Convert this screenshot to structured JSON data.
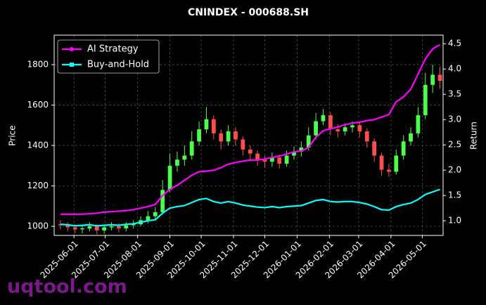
{
  "chart_data": {
    "type": "candlestick",
    "title": "CNINDEX - 000688.SH",
    "y_label": "Price",
    "y2_label": "Return",
    "watermark": "uqtool.com",
    "x": [
      "2025-05-19",
      "2025-05-26",
      "2025-06-02",
      "2025-06-09",
      "2025-06-16",
      "2025-06-23",
      "2025-06-30",
      "2025-07-07",
      "2025-07-14",
      "2025-07-21",
      "2025-07-28",
      "2025-08-04",
      "2025-08-11",
      "2025-08-18",
      "2025-08-25",
      "2025-09-01",
      "2025-09-08",
      "2025-09-15",
      "2025-09-22",
      "2025-09-29",
      "2025-10-06",
      "2025-10-13",
      "2025-10-20",
      "2025-10-27",
      "2025-11-03",
      "2025-11-10",
      "2025-11-17",
      "2025-11-24",
      "2025-12-01",
      "2025-12-08",
      "2025-12-15",
      "2025-12-22",
      "2025-12-29",
      "2026-01-05",
      "2026-01-12",
      "2026-01-19",
      "2026-01-26",
      "2026-02-02",
      "2026-02-09",
      "2026-02-16",
      "2026-02-23",
      "2026-03-02",
      "2026-03-09",
      "2026-03-16",
      "2026-03-23",
      "2026-03-30",
      "2026-04-06",
      "2026-04-13",
      "2026-04-20",
      "2026-04-27",
      "2026-05-04",
      "2026-05-11",
      "2026-05-18"
    ],
    "open": [
      1010,
      1005,
      995,
      985,
      990,
      1000,
      980,
      995,
      1000,
      990,
      1005,
      1010,
      1030,
      1050,
      1070,
      1180,
      1300,
      1330,
      1350,
      1420,
      1480,
      1530,
      1460,
      1420,
      1470,
      1430,
      1380,
      1360,
      1330,
      1320,
      1340,
      1310,
      1350,
      1370,
      1390,
      1450,
      1520,
      1550,
      1480,
      1470,
      1490,
      1500,
      1470,
      1420,
      1350,
      1280,
      1270,
      1350,
      1420,
      1460,
      1550,
      1700,
      1750
    ],
    "high": [
      1030,
      1020,
      1010,
      1005,
      1020,
      1010,
      1010,
      1020,
      1015,
      1020,
      1030,
      1050,
      1075,
      1095,
      1230,
      1360,
      1370,
      1400,
      1470,
      1520,
      1590,
      1550,
      1480,
      1500,
      1490,
      1445,
      1400,
      1375,
      1350,
      1365,
      1355,
      1375,
      1395,
      1420,
      1490,
      1560,
      1580,
      1565,
      1505,
      1510,
      1520,
      1515,
      1485,
      1435,
      1365,
      1310,
      1380,
      1450,
      1490,
      1590,
      1760,
      1800,
      1790
    ],
    "low": [
      985,
      975,
      965,
      965,
      975,
      960,
      965,
      980,
      970,
      975,
      990,
      1000,
      1015,
      1035,
      1060,
      1170,
      1270,
      1300,
      1330,
      1400,
      1460,
      1430,
      1380,
      1400,
      1400,
      1350,
      1330,
      1300,
      1290,
      1295,
      1285,
      1295,
      1330,
      1345,
      1375,
      1430,
      1500,
      1450,
      1440,
      1450,
      1465,
      1440,
      1390,
      1320,
      1250,
      1245,
      1255,
      1330,
      1400,
      1440,
      1530,
      1660,
      1680
    ],
    "close": [
      1005,
      995,
      985,
      990,
      1000,
      980,
      995,
      1000,
      990,
      1005,
      1010,
      1030,
      1050,
      1070,
      1180,
      1300,
      1330,
      1350,
      1420,
      1480,
      1530,
      1460,
      1420,
      1470,
      1430,
      1380,
      1360,
      1330,
      1320,
      1340,
      1310,
      1350,
      1370,
      1390,
      1450,
      1520,
      1550,
      1480,
      1470,
      1490,
      1500,
      1470,
      1420,
      1350,
      1280,
      1270,
      1350,
      1420,
      1460,
      1550,
      1700,
      1750,
      1720
    ],
    "up_color": "#4dff4d",
    "down_color": "#ff4d4d",
    "series": [
      {
        "name": "AI Strategy",
        "color": "#ff00ff",
        "axis": "y2",
        "marker": "circle",
        "values": [
          1.13,
          1.13,
          1.13,
          1.13,
          1.14,
          1.15,
          1.17,
          1.18,
          1.19,
          1.2,
          1.22,
          1.25,
          1.28,
          1.32,
          1.5,
          1.62,
          1.7,
          1.8,
          1.9,
          1.97,
          1.98,
          2.0,
          2.05,
          2.12,
          2.15,
          2.18,
          2.2,
          2.2,
          2.22,
          2.25,
          2.28,
          2.32,
          2.36,
          2.38,
          2.45,
          2.65,
          2.78,
          2.82,
          2.85,
          2.9,
          2.93,
          2.95,
          2.98,
          3.0,
          3.05,
          3.1,
          3.35,
          3.45,
          3.6,
          3.9,
          4.2,
          4.4,
          4.48
        ]
      },
      {
        "name": "Buy-and-Hold",
        "color": "#00ffff",
        "axis": "y2",
        "marker": "square",
        "values": [
          0.93,
          0.92,
          0.9,
          0.91,
          0.92,
          0.9,
          0.91,
          0.92,
          0.91,
          0.93,
          0.94,
          0.97,
          1.0,
          1.02,
          1.15,
          1.25,
          1.28,
          1.3,
          1.36,
          1.42,
          1.44,
          1.38,
          1.35,
          1.38,
          1.35,
          1.31,
          1.29,
          1.27,
          1.26,
          1.28,
          1.26,
          1.28,
          1.29,
          1.3,
          1.35,
          1.4,
          1.42,
          1.38,
          1.37,
          1.38,
          1.38,
          1.36,
          1.33,
          1.28,
          1.22,
          1.21,
          1.28,
          1.32,
          1.35,
          1.42,
          1.52,
          1.57,
          1.62
        ]
      }
    ],
    "xlim": [
      "2025-05-13",
      "2026-05-21"
    ],
    "xticks": [
      "2025-06-01",
      "2025-07-01",
      "2025-08-01",
      "2025-09-01",
      "2025-10-01",
      "2025-11-01",
      "2025-12-01",
      "2026-01-01",
      "2026-02-01",
      "2026-03-01",
      "2026-04-01",
      "2026-05-01"
    ],
    "ylim": [
      955,
      1946
    ],
    "yticks": [
      1000,
      1200,
      1400,
      1600,
      1800
    ],
    "y2lim": [
      0.71,
      4.67
    ],
    "y2ticks": [
      {
        "value": 1,
        "label": "1.0"
      },
      1.5,
      {
        "value": 2,
        "label": "2.0"
      },
      2.5,
      {
        "value": 3,
        "label": "3.0"
      },
      3.5,
      {
        "value": 4,
        "label": "4.0"
      },
      4.5
    ],
    "grid": true,
    "legend": "upper left"
  }
}
